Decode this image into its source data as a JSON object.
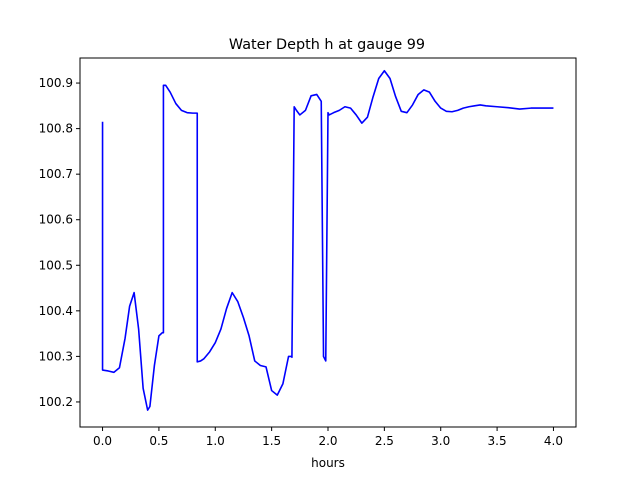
{
  "chart_data": {
    "type": "line",
    "title": "Water Depth h at gauge 99",
    "xlabel": "hours",
    "ylabel": "",
    "xlim": [
      -0.2,
      4.2
    ],
    "ylim": [
      100.145,
      100.955
    ],
    "xticks": [
      0.0,
      0.5,
      1.0,
      1.5,
      2.0,
      2.5,
      3.0,
      3.5,
      4.0
    ],
    "xtick_labels": [
      "0.0",
      "0.5",
      "1.0",
      "1.5",
      "2.0",
      "2.5",
      "3.0",
      "3.5",
      "4.0"
    ],
    "yticks": [
      100.2,
      100.3,
      100.4,
      100.5,
      100.6,
      100.7,
      100.8,
      100.9
    ],
    "ytick_labels": [
      "100.2",
      "100.3",
      "100.4",
      "100.5",
      "100.6",
      "100.7",
      "100.8",
      "100.9"
    ],
    "grid": false,
    "series": [
      {
        "color": "#0000ff",
        "x": [
          0.0,
          0.0,
          0.05,
          0.1,
          0.15,
          0.2,
          0.24,
          0.28,
          0.32,
          0.36,
          0.4,
          0.42,
          0.46,
          0.5,
          0.53,
          0.54,
          0.54,
          0.56,
          0.6,
          0.65,
          0.7,
          0.75,
          0.8,
          0.84,
          0.84,
          0.87,
          0.9,
          0.95,
          1.0,
          1.05,
          1.1,
          1.15,
          1.2,
          1.25,
          1.3,
          1.35,
          1.4,
          1.45,
          1.5,
          1.55,
          1.6,
          1.65,
          1.68,
          1.68,
          1.7,
          1.72,
          1.75,
          1.8,
          1.85,
          1.9,
          1.94,
          1.96,
          1.96,
          1.98,
          2.0,
          2.01,
          2.01,
          2.05,
          2.1,
          2.15,
          2.2,
          2.25,
          2.3,
          2.35,
          2.4,
          2.45,
          2.5,
          2.55,
          2.6,
          2.65,
          2.7,
          2.75,
          2.8,
          2.85,
          2.9,
          2.95,
          3.0,
          3.05,
          3.1,
          3.15,
          3.2,
          3.25,
          3.3,
          3.35,
          3.4,
          3.5,
          3.6,
          3.7,
          3.8,
          3.9,
          4.0
        ],
        "y": [
          100.815,
          100.27,
          100.268,
          100.265,
          100.275,
          100.34,
          100.41,
          100.44,
          100.36,
          100.23,
          100.182,
          100.19,
          100.28,
          100.345,
          100.352,
          100.352,
          100.895,
          100.895,
          100.88,
          100.855,
          100.84,
          100.835,
          100.834,
          100.834,
          100.288,
          100.29,
          100.295,
          100.31,
          100.33,
          100.36,
          100.405,
          100.44,
          100.42,
          100.385,
          100.345,
          100.29,
          100.28,
          100.277,
          100.225,
          100.215,
          100.24,
          100.3,
          100.3,
          100.298,
          100.848,
          100.84,
          100.83,
          100.84,
          100.872,
          100.875,
          100.86,
          100.31,
          100.3,
          100.29,
          100.835,
          100.83,
          100.83,
          100.835,
          100.84,
          100.848,
          100.845,
          100.83,
          100.812,
          100.825,
          100.87,
          100.91,
          100.927,
          100.91,
          100.87,
          100.838,
          100.835,
          100.852,
          100.875,
          100.885,
          100.88,
          100.86,
          100.845,
          100.838,
          100.837,
          100.84,
          100.845,
          100.848,
          100.85,
          100.852,
          100.85,
          100.848,
          100.846,
          100.843,
          100.845,
          100.845,
          100.845
        ]
      }
    ]
  }
}
